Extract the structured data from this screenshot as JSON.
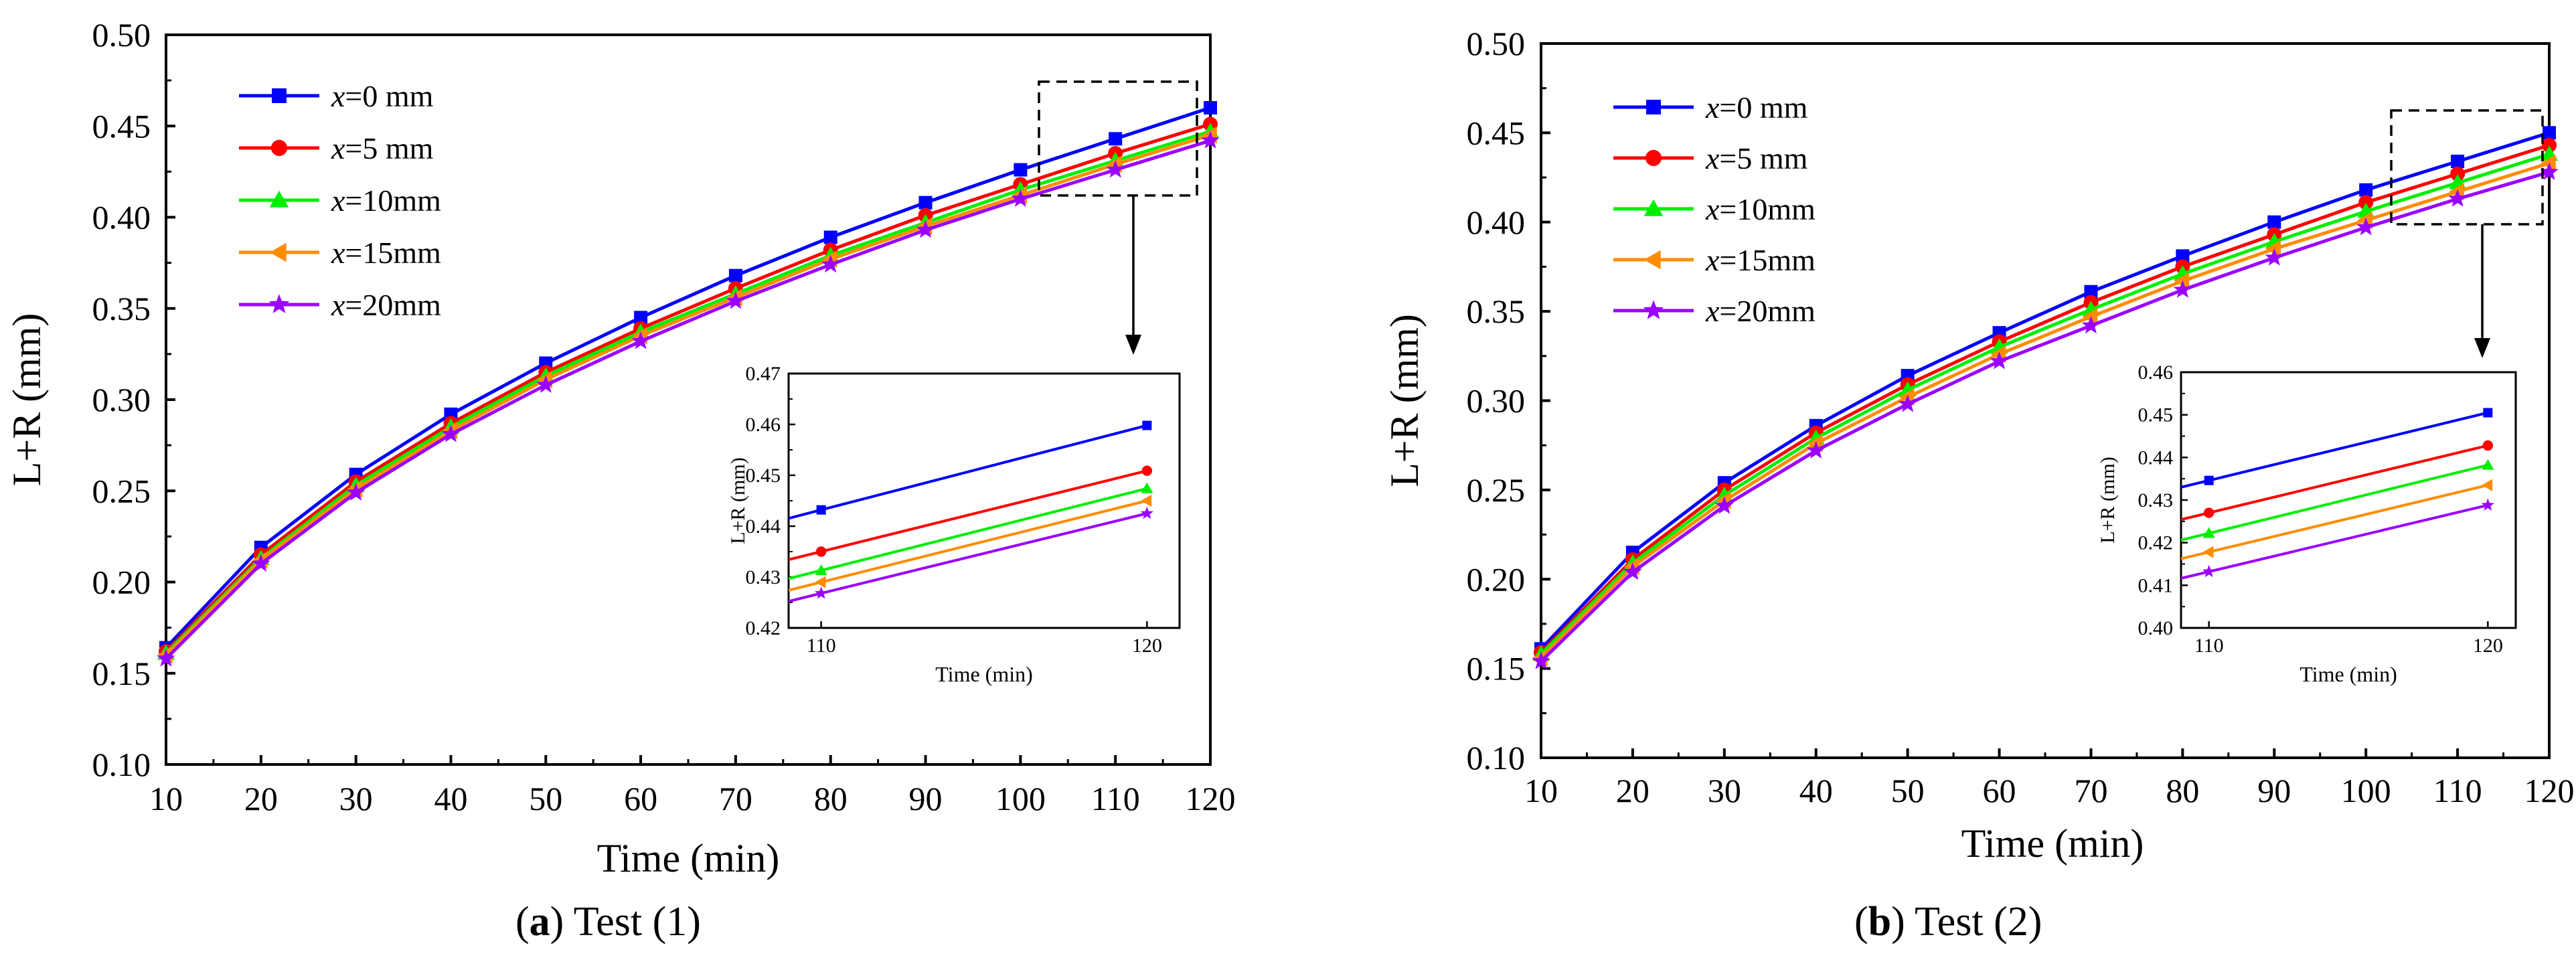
{
  "captions": [
    {
      "open": "(",
      "letter": "a",
      "close": ")",
      "text": " Test (1)"
    },
    {
      "open": "(",
      "letter": "b",
      "close": ")",
      "text": " Test (2)"
    }
  ],
  "colors": {
    "x0": "#0000ff",
    "x5": "#ff0000",
    "x10": "#00ee00",
    "x15": "#ff8c00",
    "x20": "#9a00ff",
    "axis": "#000000"
  },
  "chart_data": [
    {
      "type": "line",
      "title": "",
      "xlabel": "Time (min)",
      "ylabel": "L+R (mm)",
      "xlim": [
        10,
        120
      ],
      "ylim": [
        0.1,
        0.5
      ],
      "x": [
        10,
        20,
        30,
        40,
        50,
        60,
        70,
        80,
        90,
        100,
        110,
        120
      ],
      "xticks": [
        "10",
        "20",
        "30",
        "40",
        "50",
        "60",
        "70",
        "80",
        "90",
        "100",
        "110",
        "120"
      ],
      "yticks": [
        "0.10",
        "0.15",
        "0.20",
        "0.25",
        "0.30",
        "0.35",
        "0.40",
        "0.45",
        "0.50"
      ],
      "legend_position": "top-left",
      "series": [
        {
          "name": "x=0 mm",
          "var": "x",
          "rest": "=0 mm",
          "marker": "square",
          "color": "#0000ff",
          "values": [
            0.164,
            0.219,
            0.259,
            0.292,
            0.32,
            0.345,
            0.368,
            0.389,
            0.408,
            0.426,
            0.443,
            0.46
          ]
        },
        {
          "name": "x=5 mm",
          "var": "x",
          "rest": "=5 mm",
          "marker": "circle",
          "color": "#ff0000",
          "values": [
            0.162,
            0.215,
            0.255,
            0.287,
            0.315,
            0.339,
            0.361,
            0.382,
            0.401,
            0.418,
            0.435,
            0.451
          ]
        },
        {
          "name": "x=10mm",
          "var": "x",
          "rest": "=10mm",
          "marker": "triangle-up",
          "color": "#00ee00",
          "values": [
            0.161,
            0.213,
            0.253,
            0.285,
            0.313,
            0.337,
            0.358,
            0.379,
            0.397,
            0.415,
            0.431,
            0.447
          ]
        },
        {
          "name": "x=15mm",
          "var": "x",
          "rest": "=15mm",
          "marker": "triangle-left",
          "color": "#ff8c00",
          "values": [
            0.16,
            0.212,
            0.251,
            0.283,
            0.311,
            0.335,
            0.356,
            0.377,
            0.395,
            0.412,
            0.429,
            0.445
          ]
        },
        {
          "name": "x=20mm",
          "var": "x",
          "rest": "=20mm",
          "marker": "star",
          "color": "#9a00ff",
          "values": [
            0.158,
            0.21,
            0.249,
            0.281,
            0.308,
            0.332,
            0.354,
            0.374,
            0.393,
            0.41,
            0.426,
            0.442
          ]
        }
      ],
      "inset": {
        "xlabel": "Time (min)",
        "ylabel": "L+R (mm)",
        "xlim": [
          109,
          121
        ],
        "ylim": [
          0.42,
          0.47
        ],
        "x": [
          110,
          120
        ],
        "xticks": [
          "110",
          "120"
        ],
        "yticks": [
          "0.42",
          "0.43",
          "0.44",
          "0.45",
          "0.46",
          "0.47"
        ],
        "series": [
          {
            "name": "x=0 mm",
            "values": [
              0.4432,
              0.4598
            ]
          },
          {
            "name": "x=5 mm",
            "values": [
              0.435,
              0.4509
            ]
          },
          {
            "name": "x=10mm",
            "values": [
              0.4313,
              0.4474
            ]
          },
          {
            "name": "x=15mm",
            "values": [
              0.429,
              0.445
            ]
          },
          {
            "name": "x=20mm",
            "values": [
              0.4268,
              0.4425
            ]
          }
        ]
      }
    },
    {
      "type": "line",
      "title": "",
      "xlabel": "Time (min)",
      "ylabel": "L+R (mm)",
      "xlim": [
        10,
        120
      ],
      "ylim": [
        0.1,
        0.5
      ],
      "x": [
        10,
        20,
        30,
        40,
        50,
        60,
        70,
        80,
        90,
        100,
        110,
        120
      ],
      "xticks": [
        "10",
        "20",
        "30",
        "40",
        "50",
        "60",
        "70",
        "80",
        "90",
        "100",
        "110",
        "120"
      ],
      "yticks": [
        "0.10",
        "0.15",
        "0.20",
        "0.25",
        "0.30",
        "0.35",
        "0.40",
        "0.45",
        "0.50"
      ],
      "legend_position": "top-left",
      "series": [
        {
          "name": "x=0 mm",
          "var": "x",
          "rest": "=0 mm",
          "marker": "square",
          "color": "#0000ff",
          "values": [
            0.161,
            0.215,
            0.254,
            0.286,
            0.314,
            0.338,
            0.361,
            0.381,
            0.4,
            0.418,
            0.434,
            0.45
          ]
        },
        {
          "name": "x=5 mm",
          "var": "x",
          "rest": "=5 mm",
          "marker": "circle",
          "color": "#ff0000",
          "values": [
            0.159,
            0.211,
            0.25,
            0.282,
            0.309,
            0.333,
            0.355,
            0.375,
            0.393,
            0.411,
            0.427,
            0.443
          ]
        },
        {
          "name": "x=10mm",
          "var": "x",
          "rest": "=10mm",
          "marker": "triangle-up",
          "color": "#00ee00",
          "values": [
            0.158,
            0.209,
            0.247,
            0.279,
            0.306,
            0.33,
            0.351,
            0.371,
            0.389,
            0.406,
            0.422,
            0.438
          ]
        },
        {
          "name": "x=15mm",
          "var": "x",
          "rest": "=15mm",
          "marker": "triangle-left",
          "color": "#ff8c00",
          "values": [
            0.156,
            0.207,
            0.244,
            0.276,
            0.302,
            0.326,
            0.347,
            0.367,
            0.385,
            0.401,
            0.417,
            0.433
          ]
        },
        {
          "name": "x=20mm",
          "var": "x",
          "rest": "=20mm",
          "marker": "star",
          "color": "#9a00ff",
          "values": [
            0.154,
            0.204,
            0.241,
            0.272,
            0.298,
            0.322,
            0.342,
            0.362,
            0.38,
            0.397,
            0.413,
            0.428
          ]
        }
      ],
      "inset": {
        "xlabel": "Time (min)",
        "ylabel": "L+R (mm)",
        "xlim": [
          109,
          121
        ],
        "ylim": [
          0.4,
          0.46
        ],
        "x": [
          110,
          120
        ],
        "xticks": [
          "110",
          "120"
        ],
        "yticks": [
          "0.40",
          "0.41",
          "0.42",
          "0.43",
          "0.44",
          "0.45",
          "0.46"
        ],
        "series": [
          {
            "name": "x=0 mm",
            "values": [
              0.4346,
              0.4505
            ]
          },
          {
            "name": "x=5 mm",
            "values": [
              0.427,
              0.4428
            ]
          },
          {
            "name": "x=10mm",
            "values": [
              0.4222,
              0.4382
            ]
          },
          {
            "name": "x=15mm",
            "values": [
              0.4178,
              0.4335
            ]
          },
          {
            "name": "x=20mm",
            "values": [
              0.4132,
              0.4288
            ]
          }
        ]
      }
    }
  ]
}
